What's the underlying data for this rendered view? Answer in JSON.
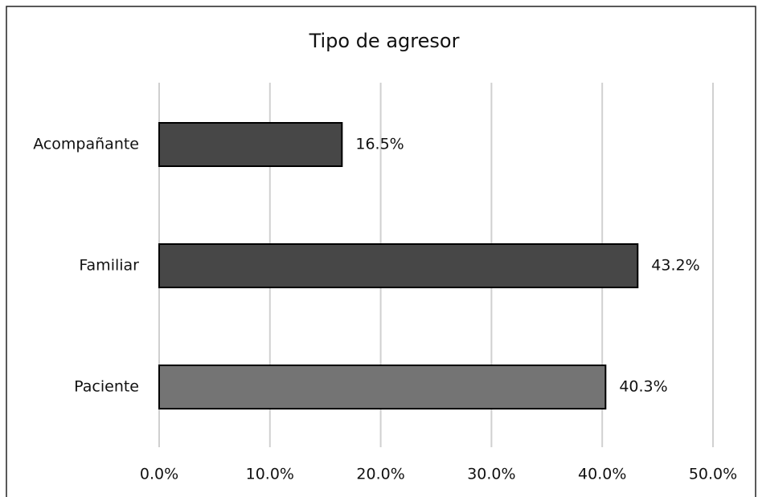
{
  "chart_data": {
    "type": "barh",
    "title": "Tipo de agresor",
    "categories": [
      "Acompañante",
      "Familiar",
      "Paciente"
    ],
    "values": [
      16.5,
      43.2,
      40.3
    ],
    "value_labels": [
      "16.5%",
      "43.2%",
      "40.3%"
    ],
    "colors": [
      "#474747",
      "#474747",
      "#747474"
    ],
    "xlim": [
      0,
      50
    ],
    "xticks": [
      {
        "value": 0,
        "label": "0.0%"
      },
      {
        "value": 10,
        "label": "10.0%"
      },
      {
        "value": 20,
        "label": "20.0%"
      },
      {
        "value": 30,
        "label": "30.0%"
      },
      {
        "value": 40,
        "label": "40.0%"
      },
      {
        "value": 50,
        "label": "50.0%"
      }
    ],
    "grid": true
  }
}
